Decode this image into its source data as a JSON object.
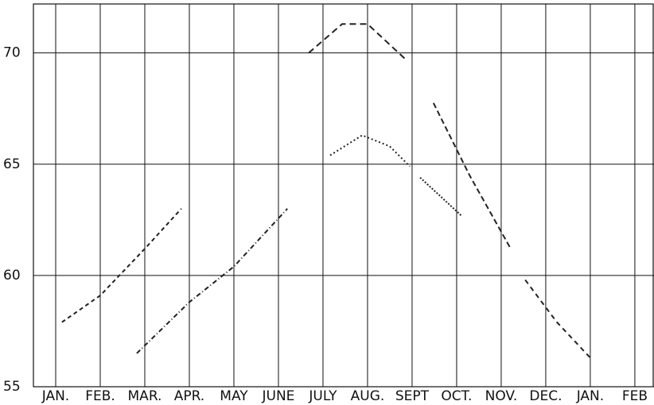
{
  "chart_data": {
    "type": "line",
    "x_categories": [
      "JAN.",
      "FEB.",
      "MAR.",
      "APR.",
      "MAY",
      "JUNE",
      "JULY",
      "AUG.",
      "SEPT",
      "OCT.",
      "NOV.",
      "DEC.",
      "JAN.",
      "FEB"
    ],
    "xlim": [
      -0.5,
      13.43
    ],
    "ylim": [
      55,
      72.2
    ],
    "yticks": [
      55,
      60,
      65,
      70
    ],
    "grid": true,
    "series": [
      {
        "color": "#222222",
        "dash": "5,4",
        "x": [
          0.14,
          1.0,
          2.0,
          2.82
        ],
        "values": [
          57.9,
          59.1,
          61.2,
          63.0
        ]
      },
      {
        "color": "#222222",
        "dash": "6,3,1,3",
        "x": [
          1.82,
          3.0,
          4.0,
          5.2
        ],
        "values": [
          56.5,
          58.8,
          60.4,
          63.0
        ]
      },
      {
        "color": "#222222",
        "dash": "8,5",
        "x": [
          5.68,
          6.43,
          7.0,
          7.86
        ],
        "values": [
          70.0,
          71.3,
          71.3,
          69.7
        ]
      },
      {
        "color": "#222222",
        "dash": "2,3",
        "x": [
          6.16,
          6.88,
          7.5,
          7.95
        ],
        "values": [
          65.4,
          66.3,
          65.8,
          64.9
        ]
      },
      {
        "color": "#222222",
        "dash": "7,4",
        "x": [
          8.48,
          9.29,
          10.2
        ],
        "values": [
          67.75,
          64.5,
          61.25
        ]
      },
      {
        "color": "#222222",
        "dash": "2,2",
        "x": [
          8.18,
          9.1
        ],
        "values": [
          64.4,
          62.7
        ]
      },
      {
        "color": "#222222",
        "dash": "6,5",
        "x": [
          10.54,
          11.25,
          12.0
        ],
        "values": [
          59.8,
          57.9,
          56.3
        ]
      }
    ]
  }
}
